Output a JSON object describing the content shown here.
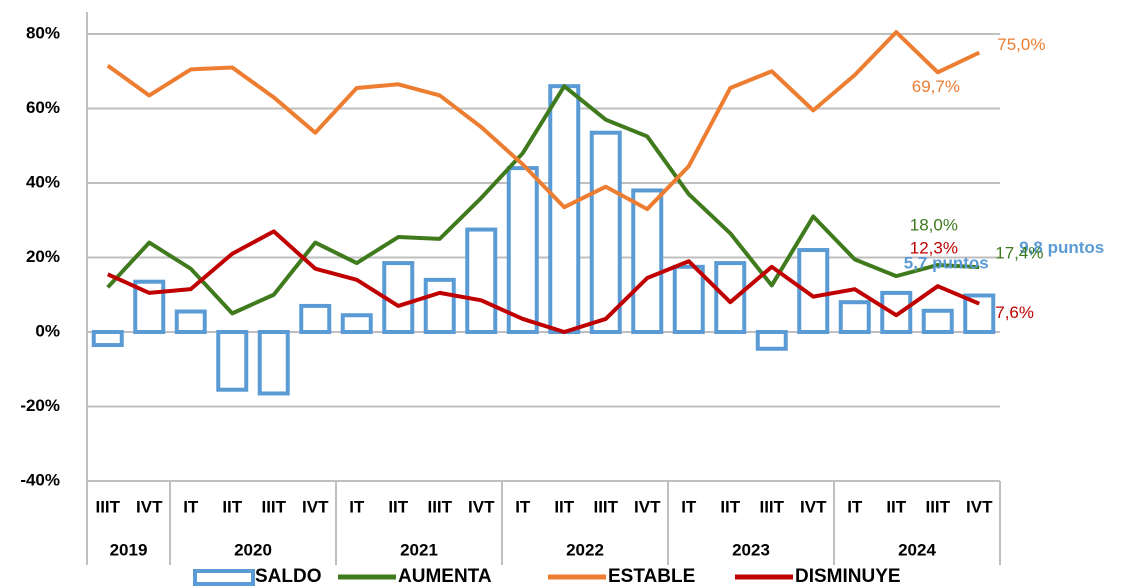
{
  "chart_data": {
    "type": "bar-line",
    "categories": [
      "IIIT",
      "IVT",
      "IT",
      "IIT",
      "IIIT",
      "IVT",
      "IT",
      "IIT",
      "IIIT",
      "IVT",
      "IT",
      "IIT",
      "IIIT",
      "IVT",
      "IT",
      "IIT",
      "IIIT",
      "IVT",
      "IT",
      "IIT",
      "IIIT",
      "IVT"
    ],
    "category_groups": [
      {
        "label": "2019",
        "count": 2
      },
      {
        "label": "2020",
        "count": 4
      },
      {
        "label": "2021",
        "count": 4
      },
      {
        "label": "2022",
        "count": 4
      },
      {
        "label": "2023",
        "count": 4
      },
      {
        "label": "2024",
        "count": 4
      }
    ],
    "ylim": [
      -40,
      80
    ],
    "yticks": [
      {
        "value": -40,
        "label": "-40%"
      },
      {
        "value": -20,
        "label": "-20%"
      },
      {
        "value": 0,
        "label": "0%"
      },
      {
        "value": 20,
        "label": "20%"
      },
      {
        "value": 40,
        "label": "40%"
      },
      {
        "value": 60,
        "label": "60%"
      },
      {
        "value": 80,
        "label": "80%"
      }
    ],
    "grid": true,
    "legend": "bottom",
    "series": [
      {
        "name": "SALDO",
        "kind": "bar",
        "color": "#5b9bd5",
        "values": [
          -3.5,
          13.5,
          5.5,
          -15.5,
          -16.5,
          7,
          4.5,
          18.5,
          14,
          27.5,
          44,
          66,
          53.5,
          38,
          17.5,
          18.5,
          -4.5,
          22,
          8,
          10.5,
          5.7,
          9.8
        ],
        "value_labels": [
          null,
          null,
          null,
          null,
          null,
          null,
          null,
          null,
          null,
          null,
          null,
          null,
          null,
          null,
          null,
          null,
          null,
          null,
          null,
          null,
          "5,7 puntos",
          "9,8 puntos"
        ]
      },
      {
        "name": "AUMENTA",
        "kind": "line",
        "color": "#3f7a1d",
        "values": [
          12,
          24,
          17,
          5,
          10,
          24,
          18.5,
          25.5,
          25,
          36,
          48,
          66,
          57,
          52.5,
          37,
          26.5,
          12.5,
          31,
          19.5,
          15,
          18,
          17.4
        ],
        "value_labels": [
          null,
          null,
          null,
          null,
          null,
          null,
          null,
          null,
          null,
          null,
          null,
          null,
          null,
          null,
          null,
          null,
          null,
          null,
          null,
          null,
          "18,0%",
          "17,4%"
        ]
      },
      {
        "name": "ESTABLE",
        "kind": "line",
        "color": "#ed7d31",
        "values": [
          71.5,
          63.5,
          70.5,
          71,
          63,
          53.5,
          65.5,
          66.5,
          63.5,
          55,
          45,
          33.5,
          39,
          33,
          44.5,
          65.5,
          70,
          59.5,
          69,
          80.5,
          69.7,
          75
        ],
        "value_labels": [
          null,
          null,
          null,
          null,
          null,
          null,
          null,
          null,
          null,
          null,
          null,
          null,
          null,
          null,
          null,
          null,
          null,
          null,
          null,
          null,
          "69,7%",
          "75,0%"
        ]
      },
      {
        "name": "DISMINUYE",
        "kind": "line",
        "color": "#c00000",
        "values": [
          15.5,
          10.5,
          11.5,
          21,
          27,
          17,
          14,
          7,
          10.5,
          8.5,
          3.5,
          0,
          3.5,
          14.5,
          19,
          8,
          17.5,
          9.5,
          11.5,
          4.5,
          12.3,
          7.6
        ],
        "value_labels": [
          null,
          null,
          null,
          null,
          null,
          null,
          null,
          null,
          null,
          null,
          null,
          null,
          null,
          null,
          null,
          null,
          null,
          null,
          null,
          null,
          "12,3%",
          "7,6%"
        ]
      }
    ]
  }
}
